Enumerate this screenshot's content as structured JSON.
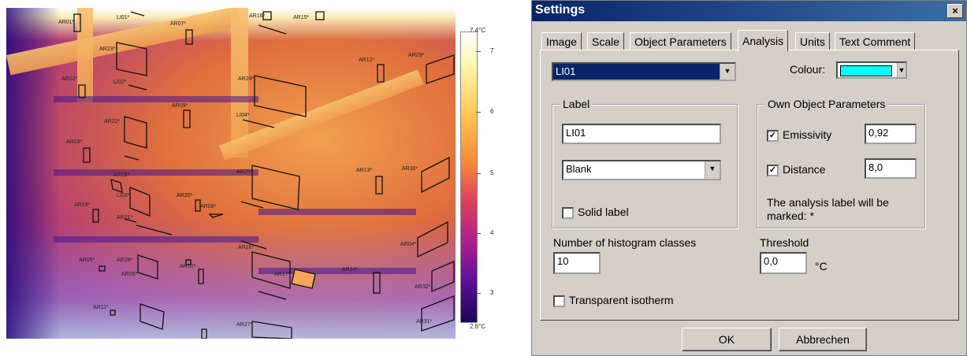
{
  "thermal_image": {
    "scale": {
      "max_label": "7,4°C",
      "min_label": "2,6°C",
      "ticks": [
        "7",
        "6",
        "5",
        "4",
        "3"
      ]
    },
    "annotations": [
      "AR01*",
      "LI01*",
      "AR07*",
      "AR16*",
      "AR15*",
      "AR23*",
      "AR12*",
      "AR29*",
      "AR02*",
      "LI02*",
      "AR24*",
      "AR09*",
      "LI04*",
      "AR22*",
      "AR03*",
      "AR18*",
      "AR25*",
      "AR13*",
      "AR30*",
      "AR20*",
      "AR08*",
      "LI03*",
      "AR19*",
      "AR21*",
      "AR26*",
      "AR04*",
      "AR28*",
      "AR17*",
      "AR14*",
      "AR32*",
      "AR05*",
      "AR06*",
      "AR10*",
      "AR11*",
      "AR27*",
      "AR31*"
    ]
  },
  "dialog": {
    "title": "Settings",
    "close_glyph": "×",
    "tabs": [
      "Image",
      "Scale",
      "Object Parameters",
      "Analysis",
      "Units",
      "Text Comment"
    ],
    "active_tab": "Analysis",
    "object_select": "LI01",
    "colour_label": "Colour:",
    "colour_value": "#00ffff",
    "label_group": {
      "title": "Label",
      "text_value": "LI01",
      "type_select": "Blank",
      "solid_label": "Solid label",
      "solid_checked": false
    },
    "own_params": {
      "title": "Own Object Parameters",
      "emissivity_label": "Emissivity",
      "emissivity_value": "0,92",
      "emissivity_checked": true,
      "distance_label": "Distance",
      "distance_value": "8,0",
      "distance_checked": true,
      "note": "The analysis label will be marked: *"
    },
    "histogram_label": "Number of histogram classes",
    "histogram_value": "10",
    "threshold_label": "Threshold",
    "threshold_value": "0,0",
    "threshold_unit": "°C",
    "transparent_label": "Transparent isotherm",
    "transparent_checked": false,
    "ok_label": "OK",
    "cancel_label": "Abbrechen"
  }
}
